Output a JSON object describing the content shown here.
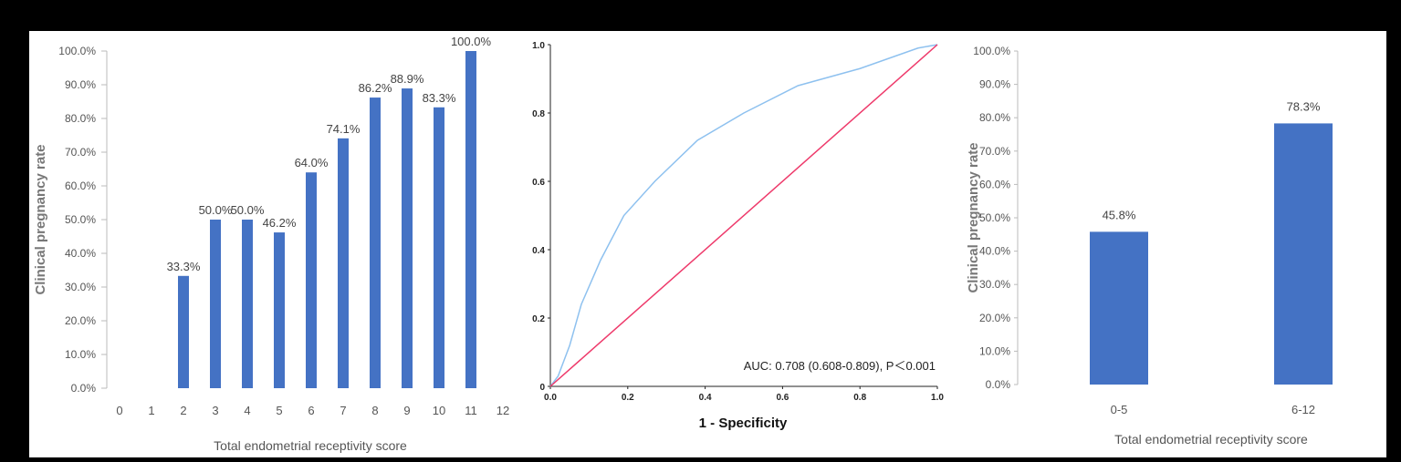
{
  "chart_data": [
    {
      "type": "bar",
      "ylabel": "Clinical pregnancy rate",
      "xlabel": "Total endometrial receptivity score",
      "categories": [
        "0",
        "1",
        "2",
        "3",
        "4",
        "5",
        "6",
        "7",
        "8",
        "9",
        "10",
        "11",
        "12"
      ],
      "values": [
        null,
        null,
        33.3,
        50.0,
        50.0,
        46.2,
        64.0,
        74.1,
        86.2,
        88.9,
        83.3,
        100.0,
        null
      ],
      "labels": [
        "",
        "",
        "33.3%",
        "50.0%",
        "50.0%",
        "46.2%",
        "64.0%",
        "74.1%",
        "86.2%",
        "88.9%",
        "83.3%",
        "100.0%",
        ""
      ],
      "yticks": [
        "0.0%",
        "10.0%",
        "20.0%",
        "30.0%",
        "40.0%",
        "50.0%",
        "60.0%",
        "70.0%",
        "80.0%",
        "90.0%",
        "100.0%"
      ],
      "ylim": [
        0,
        100
      ],
      "bar_color": "#4472c4"
    },
    {
      "type": "line",
      "xlabel": "1 - Specificity",
      "ylabel": "",
      "xticks": [
        "0.0",
        "0.2",
        "0.4",
        "0.6",
        "0.8",
        "1.0"
      ],
      "yticks": [
        "0",
        "0.2",
        "0.4",
        "0.6",
        "0.8",
        "1.0"
      ],
      "xlim": [
        0,
        1
      ],
      "ylim": [
        0,
        1
      ],
      "annotation": "AUC: 0.708 (0.608-0.809), P＜0.001",
      "series": [
        {
          "color": "#8ec1ef",
          "x": [
            0,
            0.02,
            0.05,
            0.08,
            0.13,
            0.19,
            0.27,
            0.38,
            0.5,
            0.64,
            0.8,
            0.95,
            1.0
          ],
          "y": [
            0,
            0.03,
            0.12,
            0.24,
            0.37,
            0.5,
            0.6,
            0.72,
            0.8,
            0.88,
            0.93,
            0.99,
            1.0
          ]
        },
        {
          "color": "#ee3a6b",
          "x": [
            0,
            1
          ],
          "y": [
            0,
            1
          ]
        }
      ]
    },
    {
      "type": "bar",
      "ylabel": "Clinical pregnancy rate",
      "xlabel": "Total endometrial receptivity score",
      "categories": [
        "0-5",
        "6-12"
      ],
      "values": [
        45.8,
        78.3
      ],
      "labels": [
        "45.8%",
        "78.3%"
      ],
      "yticks": [
        "0.0%",
        "10.0%",
        "20.0%",
        "30.0%",
        "40.0%",
        "50.0%",
        "60.0%",
        "70.0%",
        "80.0%",
        "90.0%",
        "100.0%"
      ],
      "ylim": [
        0,
        100
      ],
      "bar_color": "#4472c4"
    }
  ]
}
